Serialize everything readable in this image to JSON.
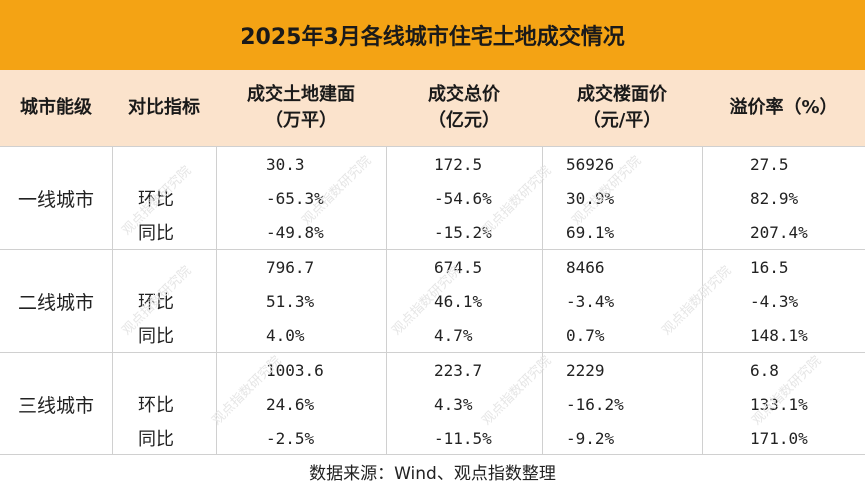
{
  "title": "2025年3月各线城市住宅土地成交情况",
  "headers": {
    "city_level": "城市能级",
    "metric": "对比指标",
    "area": [
      "成交土地建面",
      "（万平）"
    ],
    "total": [
      "成交总价",
      "（亿元）"
    ],
    "price": [
      "成交楼面价",
      "（元/平）"
    ],
    "premium": "溢价率（%）"
  },
  "groups": [
    {
      "city": "一线城市",
      "rows": [
        {
          "metric": "",
          "area": "30.3",
          "total": "172.5",
          "price": "56926",
          "premium": "27.5"
        },
        {
          "metric": "环比",
          "area": "-65.3%",
          "total": "-54.6%",
          "price": "30.9%",
          "premium": "82.9%"
        },
        {
          "metric": "同比",
          "area": "-49.8%",
          "total": "-15.2%",
          "price": "69.1%",
          "premium": "207.4%"
        }
      ]
    },
    {
      "city": "二线城市",
      "rows": [
        {
          "metric": "",
          "area": "796.7",
          "total": "674.5",
          "price": "8466",
          "premium": "16.5"
        },
        {
          "metric": "环比",
          "area": "51.3%",
          "total": "46.1%",
          "price": "-3.4%",
          "premium": "-4.3%"
        },
        {
          "metric": "同比",
          "area": "4.0%",
          "total": "4.7%",
          "price": "0.7%",
          "premium": "148.1%"
        }
      ]
    },
    {
      "city": "三线城市",
      "rows": [
        {
          "metric": "",
          "area": "1003.6",
          "total": "223.7",
          "price": "2229",
          "premium": "6.8"
        },
        {
          "metric": "环比",
          "area": "24.6%",
          "total": "4.3%",
          "price": "-16.2%",
          "premium": "133.1%"
        },
        {
          "metric": "同比",
          "area": "-2.5%",
          "total": "-11.5%",
          "price": "-9.2%",
          "premium": "171.0%"
        }
      ]
    }
  ],
  "source": "数据来源：Wind、观点指数整理",
  "watermark": "观点指数研究院",
  "colors": {
    "title_bg": "#F4A314",
    "header_bg": "#FBE3CC"
  }
}
